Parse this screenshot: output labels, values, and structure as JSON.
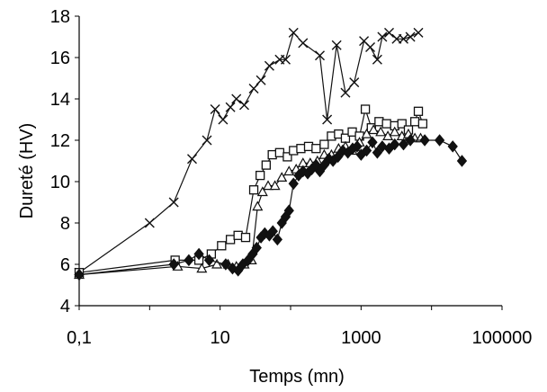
{
  "chart_data": {
    "type": "scatter",
    "title": "",
    "xlabel": "Temps (mn)",
    "ylabel": "Dureté (HV)",
    "x_scale": "log",
    "xlim": [
      0.1,
      100000
    ],
    "ylim": [
      4,
      18
    ],
    "x_ticks": [
      0.1,
      10,
      1000,
      100000
    ],
    "x_tick_labels": [
      "0,1",
      "10",
      "1000",
      "100000"
    ],
    "y_ticks": [
      4,
      6,
      8,
      10,
      12,
      14,
      16,
      18
    ],
    "y_tick_labels": [
      "4",
      "6",
      "8",
      "10",
      "12",
      "14",
      "16",
      "18"
    ],
    "grid": false,
    "legend": "none",
    "series": [
      {
        "marker": "x",
        "color": "#111111",
        "points": [
          [
            0.1,
            5.6
          ],
          [
            1,
            8.0
          ],
          [
            2.2,
            9.0
          ],
          [
            4,
            11.1
          ],
          [
            6.5,
            12.0
          ],
          [
            8.5,
            13.5
          ],
          [
            11,
            13.0
          ],
          [
            14,
            13.6
          ],
          [
            17,
            14.0
          ],
          [
            22,
            13.7
          ],
          [
            30,
            14.5
          ],
          [
            38,
            14.9
          ],
          [
            50,
            15.6
          ],
          [
            70,
            15.9
          ],
          [
            85,
            15.9
          ],
          [
            110,
            17.2
          ],
          [
            150,
            16.7
          ],
          [
            260,
            16.1
          ],
          [
            330,
            13.0
          ],
          [
            450,
            16.6
          ],
          [
            600,
            14.3
          ],
          [
            800,
            14.8
          ],
          [
            1100,
            16.8
          ],
          [
            1350,
            16.5
          ],
          [
            1700,
            15.9
          ],
          [
            2000,
            17.0
          ],
          [
            2500,
            17.2
          ],
          [
            3200,
            16.9
          ],
          [
            4000,
            16.9
          ],
          [
            5000,
            17.0
          ],
          [
            6500,
            17.2
          ]
        ]
      },
      {
        "marker": "square",
        "color": "#111111",
        "points": [
          [
            0.1,
            5.6
          ],
          [
            2.3,
            6.2
          ],
          [
            5,
            6.2
          ],
          [
            7.5,
            6.5
          ],
          [
            10.5,
            6.9
          ],
          [
            14,
            7.2
          ],
          [
            18,
            7.4
          ],
          [
            23,
            7.3
          ],
          [
            30,
            9.6
          ],
          [
            37,
            10.3
          ],
          [
            45,
            10.8
          ],
          [
            55,
            11.3
          ],
          [
            70,
            11.4
          ],
          [
            90,
            11.2
          ],
          [
            110,
            11.5
          ],
          [
            140,
            11.6
          ],
          [
            180,
            11.7
          ],
          [
            230,
            11.6
          ],
          [
            300,
            11.8
          ],
          [
            380,
            12.2
          ],
          [
            480,
            12.3
          ],
          [
            600,
            12.1
          ],
          [
            750,
            12.4
          ],
          [
            950,
            12.2
          ],
          [
            1150,
            13.5
          ],
          [
            1400,
            12.6
          ],
          [
            1800,
            12.9
          ],
          [
            2300,
            12.8
          ],
          [
            3000,
            12.7
          ],
          [
            3800,
            12.8
          ],
          [
            4700,
            12.5
          ],
          [
            5800,
            12.9
          ],
          [
            6500,
            13.4
          ],
          [
            7500,
            12.8
          ]
        ]
      },
      {
        "marker": "triangle",
        "color": "#111111",
        "points": [
          [
            0.1,
            5.5
          ],
          [
            2.5,
            5.9
          ],
          [
            5.5,
            5.8
          ],
          [
            9,
            6.0
          ],
          [
            13,
            6.0
          ],
          [
            17,
            5.9
          ],
          [
            22,
            6.0
          ],
          [
            28,
            6.2
          ],
          [
            34,
            8.8
          ],
          [
            40,
            9.5
          ],
          [
            48,
            9.8
          ],
          [
            60,
            9.8
          ],
          [
            75,
            10.2
          ],
          [
            95,
            10.5
          ],
          [
            120,
            10.6
          ],
          [
            150,
            10.9
          ],
          [
            190,
            10.9
          ],
          [
            240,
            11.0
          ],
          [
            300,
            11.3
          ],
          [
            380,
            11.3
          ],
          [
            480,
            11.6
          ],
          [
            600,
            11.7
          ],
          [
            750,
            11.5
          ],
          [
            950,
            11.9
          ],
          [
            1200,
            12.3
          ],
          [
            1500,
            12.5
          ],
          [
            1900,
            12.4
          ],
          [
            2400,
            12.2
          ],
          [
            3000,
            12.4
          ],
          [
            3800,
            12.2
          ],
          [
            4700,
            12.3
          ],
          [
            5800,
            12.1
          ],
          [
            7000,
            12.1
          ]
        ]
      },
      {
        "marker": "diamond",
        "color": "#111111",
        "points": [
          [
            0.1,
            5.5
          ],
          [
            2.2,
            6.0
          ],
          [
            3.6,
            6.2
          ],
          [
            5,
            6.5
          ],
          [
            7,
            6.2
          ],
          [
            12,
            6.0
          ],
          [
            15,
            5.8
          ],
          [
            18,
            5.7
          ],
          [
            21,
            6.0
          ],
          [
            25,
            6.2
          ],
          [
            29,
            6.5
          ],
          [
            33,
            6.8
          ],
          [
            38,
            7.3
          ],
          [
            43,
            7.5
          ],
          [
            50,
            7.4
          ],
          [
            56,
            7.6
          ],
          [
            65,
            7.2
          ],
          [
            75,
            8.0
          ],
          [
            85,
            8.3
          ],
          [
            95,
            8.6
          ],
          [
            110,
            9.9
          ],
          [
            130,
            10.3
          ],
          [
            150,
            10.5
          ],
          [
            175,
            10.4
          ],
          [
            200,
            10.6
          ],
          [
            230,
            10.8
          ],
          [
            260,
            10.5
          ],
          [
            300,
            10.8
          ],
          [
            350,
            11.1
          ],
          [
            400,
            11.0
          ],
          [
            470,
            11.2
          ],
          [
            550,
            11.5
          ],
          [
            650,
            11.4
          ],
          [
            760,
            11.6
          ],
          [
            880,
            11.7
          ],
          [
            1000,
            11.3
          ],
          [
            1200,
            11.5
          ],
          [
            1450,
            11.9
          ],
          [
            1700,
            11.4
          ],
          [
            2000,
            11.7
          ],
          [
            2500,
            11.6
          ],
          [
            3000,
            11.8
          ],
          [
            4000,
            11.8
          ],
          [
            5000,
            12.0
          ],
          [
            8000,
            12.0
          ],
          [
            13000,
            12.0
          ],
          [
            20000,
            11.7
          ],
          [
            27000,
            11.0
          ]
        ]
      }
    ]
  }
}
